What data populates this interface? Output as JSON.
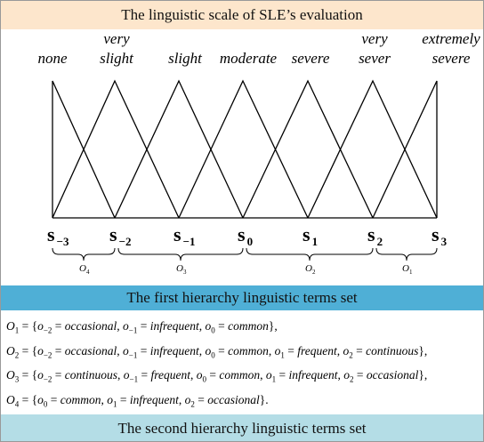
{
  "header": {
    "title": "The linguistic scale of SLE’s evaluation"
  },
  "scale": {
    "labels": [
      [
        "none"
      ],
      [
        "very",
        "slight"
      ],
      [
        "slight"
      ],
      [
        "moderate"
      ],
      [
        "severe"
      ],
      [
        "very",
        "sever"
      ],
      [
        "extremely",
        "severe"
      ]
    ],
    "terms": [
      {
        "symbol": "s",
        "sub": "−3"
      },
      {
        "symbol": "s",
        "sub": "−2"
      },
      {
        "symbol": "s",
        "sub": "−1"
      },
      {
        "symbol": "s",
        "sub": "0"
      },
      {
        "symbol": "s",
        "sub": "1"
      },
      {
        "symbol": "s",
        "sub": "2"
      },
      {
        "symbol": "s",
        "sub": "3"
      }
    ],
    "groups": [
      {
        "symbol": "O",
        "sub": "4"
      },
      {
        "symbol": "O",
        "sub": "3"
      },
      {
        "symbol": "O",
        "sub": "2"
      },
      {
        "symbol": "O",
        "sub": "1"
      }
    ]
  },
  "first_hierarchy": {
    "title": "The first hierarchy linguistic terms set",
    "sets": [
      {
        "symbol": "O",
        "sub": "1",
        "end": ",",
        "items": [
          {
            "symbol": "o",
            "sub": "−2",
            "word": "occasional"
          },
          {
            "symbol": "o",
            "sub": "−1",
            "word": "infrequent"
          },
          {
            "symbol": "o",
            "sub": "0",
            "word": "common"
          }
        ]
      },
      {
        "symbol": "O",
        "sub": "2",
        "end": ",",
        "items": [
          {
            "symbol": "o",
            "sub": "−2",
            "word": "occasional"
          },
          {
            "symbol": "o",
            "sub": "−1",
            "word": "infrequent"
          },
          {
            "symbol": "o",
            "sub": "0",
            "word": "common"
          },
          {
            "symbol": "o",
            "sub": "1",
            "word": "frequent"
          },
          {
            "symbol": "o",
            "sub": "2",
            "word": "continuous"
          }
        ]
      },
      {
        "symbol": "O",
        "sub": "3",
        "end": ",",
        "items": [
          {
            "symbol": "o",
            "sub": "−2",
            "word": "continuous"
          },
          {
            "symbol": "o",
            "sub": "−1",
            "word": "frequent"
          },
          {
            "symbol": "o",
            "sub": "0",
            "word": "common"
          },
          {
            "symbol": "o",
            "sub": "1",
            "word": "infrequent"
          },
          {
            "symbol": "o",
            "sub": "2",
            "word": "occasional"
          }
        ]
      },
      {
        "symbol": "O",
        "sub": "4",
        "end": ".",
        "items": [
          {
            "symbol": "o",
            "sub": "0",
            "word": "common"
          },
          {
            "symbol": "o",
            "sub": "1",
            "word": "infrequent"
          },
          {
            "symbol": "o",
            "sub": "2",
            "word": "occasional"
          }
        ]
      }
    ]
  },
  "second_hierarchy": {
    "title": "The second hierarchy linguistic terms set"
  }
}
